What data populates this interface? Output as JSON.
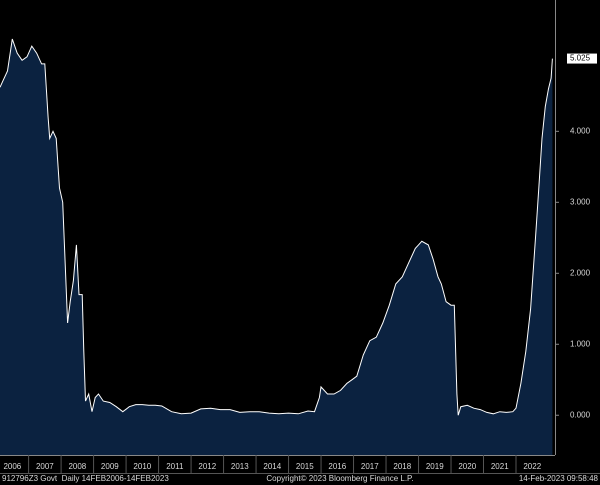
{
  "chart_data": {
    "type": "area",
    "x": [
      2006.12,
      2006.2,
      2006.35,
      2006.5,
      2006.65,
      2006.8,
      2006.95,
      2007.1,
      2007.25,
      2007.4,
      2007.5,
      2007.6,
      2007.65,
      2007.75,
      2007.85,
      2007.95,
      2008.05,
      2008.12,
      2008.2,
      2008.28,
      2008.38,
      2008.47,
      2008.55,
      2008.65,
      2008.7,
      2008.75,
      2008.85,
      2008.95,
      2009.05,
      2009.15,
      2009.3,
      2009.5,
      2009.7,
      2009.9,
      2010.1,
      2010.3,
      2010.5,
      2010.7,
      2010.9,
      2011.1,
      2011.4,
      2011.7,
      2012.0,
      2012.3,
      2012.6,
      2012.9,
      2013.2,
      2013.5,
      2013.8,
      2014.1,
      2014.4,
      2014.7,
      2015.0,
      2015.3,
      2015.6,
      2015.8,
      2015.95,
      2016.0,
      2016.2,
      2016.4,
      2016.6,
      2016.8,
      2016.95,
      2017.1,
      2017.3,
      2017.5,
      2017.7,
      2017.9,
      2018.1,
      2018.3,
      2018.5,
      2018.7,
      2018.9,
      2019.0,
      2019.1,
      2019.3,
      2019.45,
      2019.6,
      2019.7,
      2019.85,
      2020.0,
      2020.1,
      2020.18,
      2020.22,
      2020.3,
      2020.5,
      2020.7,
      2020.9,
      2021.1,
      2021.3,
      2021.5,
      2021.7,
      2021.9,
      2022.0,
      2022.15,
      2022.3,
      2022.45,
      2022.6,
      2022.7,
      2022.8,
      2022.9,
      2023.0,
      2023.08,
      2023.12
    ],
    "values": [
      4.62,
      4.7,
      4.85,
      5.3,
      5.1,
      5.0,
      5.05,
      5.2,
      5.1,
      4.95,
      4.95,
      4.2,
      3.9,
      4.0,
      3.9,
      3.2,
      3.0,
      2.2,
      1.3,
      1.6,
      1.9,
      2.4,
      1.7,
      1.7,
      0.9,
      0.2,
      0.3,
      0.05,
      0.25,
      0.3,
      0.2,
      0.18,
      0.12,
      0.05,
      0.12,
      0.15,
      0.15,
      0.14,
      0.14,
      0.13,
      0.05,
      0.02,
      0.03,
      0.09,
      0.1,
      0.08,
      0.08,
      0.04,
      0.05,
      0.05,
      0.03,
      0.02,
      0.03,
      0.02,
      0.06,
      0.05,
      0.25,
      0.4,
      0.3,
      0.3,
      0.35,
      0.45,
      0.5,
      0.55,
      0.85,
      1.05,
      1.1,
      1.3,
      1.55,
      1.85,
      1.95,
      2.15,
      2.35,
      2.4,
      2.45,
      2.4,
      2.2,
      1.95,
      1.85,
      1.6,
      1.55,
      1.55,
      0.3,
      0.0,
      0.12,
      0.14,
      0.1,
      0.08,
      0.04,
      0.02,
      0.05,
      0.04,
      0.05,
      0.1,
      0.45,
      0.9,
      1.5,
      2.5,
      3.2,
      3.9,
      4.35,
      4.6,
      4.75,
      5.025
    ],
    "color": "#0b2240",
    "line_color": "#ffffff",
    "xlim": [
      2006.12,
      2023.2
    ],
    "xticks": [
      {
        "value": 2006,
        "label": "2006"
      },
      {
        "value": 2007,
        "label": "2007"
      },
      {
        "value": 2008,
        "label": "2008"
      },
      {
        "value": 2009,
        "label": "2009"
      },
      {
        "value": 2010,
        "label": "2010"
      },
      {
        "value": 2011,
        "label": "2011"
      },
      {
        "value": 2012,
        "label": "2012"
      },
      {
        "value": 2013,
        "label": "2013"
      },
      {
        "value": 2014,
        "label": "2014"
      },
      {
        "value": 2015,
        "label": "2015"
      },
      {
        "value": 2016,
        "label": "2016"
      },
      {
        "value": 2017,
        "label": "2017"
      },
      {
        "value": 2018,
        "label": "2018"
      },
      {
        "value": 2019,
        "label": "2019"
      },
      {
        "value": 2020,
        "label": "2020"
      },
      {
        "value": 2021,
        "label": "2021"
      },
      {
        "value": 2022,
        "label": "2022"
      }
    ],
    "ylim": [
      -0.56,
      5.85
    ],
    "yticks": [
      {
        "value": 0,
        "label": "0.000"
      },
      {
        "value": 1,
        "label": "1.000"
      },
      {
        "value": 2,
        "label": "2.000"
      },
      {
        "value": 3,
        "label": "3.000"
      },
      {
        "value": 4,
        "label": "4.000"
      }
    ]
  },
  "footer": {
    "security": "912796Z3 Govt  Daily 14FEB2006-14FEB2023",
    "copyright": "Copyright© 2023 Bloomberg Finance L.P.",
    "timestamp": "14-Feb-2023 09:58:48"
  }
}
